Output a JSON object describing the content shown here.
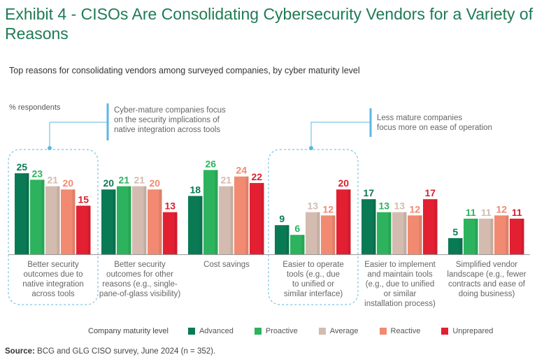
{
  "header": {
    "title": "Exhibit 4 - CISOs Are Consolidating Cybersecurity Vendors for a Variety of Reasons",
    "subtitle": "Top reasons for consolidating vendors among surveyed companies, by cyber maturity level"
  },
  "annotations": {
    "left": [
      "Cyber-mature companies focus",
      "on the security implications of",
      "native integration across tools"
    ],
    "right": [
      "Less mature companies",
      "focus more on ease of operation"
    ]
  },
  "legend": {
    "title": "Company maturity level"
  },
  "source": {
    "label": "Source:",
    "text": "BCG and GLG CISO survey, June 2024 (n = 352)."
  },
  "chart_data": {
    "type": "bar",
    "title": "Top reasons for consolidating vendors among surveyed companies, by cyber maturity level",
    "ylabel": "% respondents",
    "xlabel": "",
    "ylim": [
      0,
      26
    ],
    "grid": false,
    "legend_position": "bottom",
    "categories": [
      [
        "Better security",
        "outcomes due to",
        "native integration",
        "across tools"
      ],
      [
        "Better security",
        "outcomes for other",
        "reasons (e.g., single-",
        "pane-of-glass visibility)"
      ],
      [
        "Cost savings"
      ],
      [
        "Easier to operate",
        "tools (e.g., due",
        "to unified or",
        "similar interface)"
      ],
      [
        "Easier to implement",
        "and maintain tools",
        "(e.g., due to unified",
        "or similar",
        "installation process)"
      ],
      [
        "Simplified vendor",
        "landscape (e.g., fewer",
        "contracts and ease of",
        "doing business)"
      ]
    ],
    "series": [
      {
        "name": "Advanced",
        "color": "#0a7a55",
        "label_color": "#0a7a55",
        "values": [
          25,
          20,
          18,
          9,
          17,
          5
        ]
      },
      {
        "name": "Proactive",
        "color": "#2db35d",
        "label_color": "#2db35d",
        "values": [
          23,
          21,
          26,
          6,
          13,
          11
        ]
      },
      {
        "name": "Average",
        "color": "#d3bcaf",
        "label_color": "#d3bcaf",
        "values": [
          21,
          21,
          21,
          13,
          13,
          11
        ]
      },
      {
        "name": "Reactive",
        "color": "#f28a72",
        "label_color": "#f28a72",
        "values": [
          20,
          20,
          24,
          12,
          12,
          12
        ]
      },
      {
        "name": "Unprepared",
        "color": "#e31f32",
        "label_color": "#d6202f",
        "values": [
          15,
          13,
          22,
          20,
          17,
          11
        ]
      }
    ],
    "highlighted_categories": [
      0,
      3
    ],
    "highlight_color": "#5bb7e3"
  }
}
